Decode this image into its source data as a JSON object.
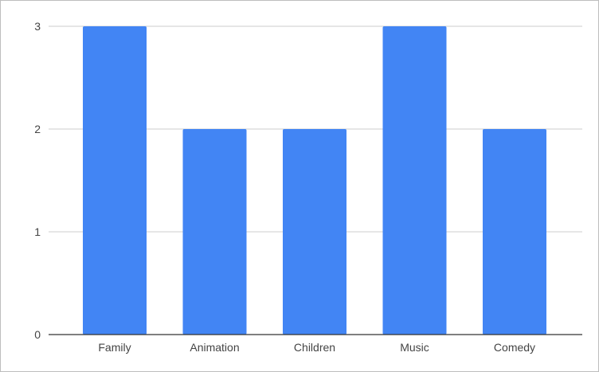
{
  "chart_data": {
    "type": "bar",
    "title": "",
    "xlabel": "",
    "ylabel": "",
    "categories": [
      "Family",
      "Animation",
      "Children",
      "Music",
      "Comedy"
    ],
    "values": [
      3,
      2,
      2,
      3,
      2
    ],
    "ylim": [
      0,
      3
    ],
    "yticks": [
      0,
      1,
      2,
      3
    ],
    "grid": true,
    "legend": "none",
    "bar_color": "#4285f4"
  }
}
